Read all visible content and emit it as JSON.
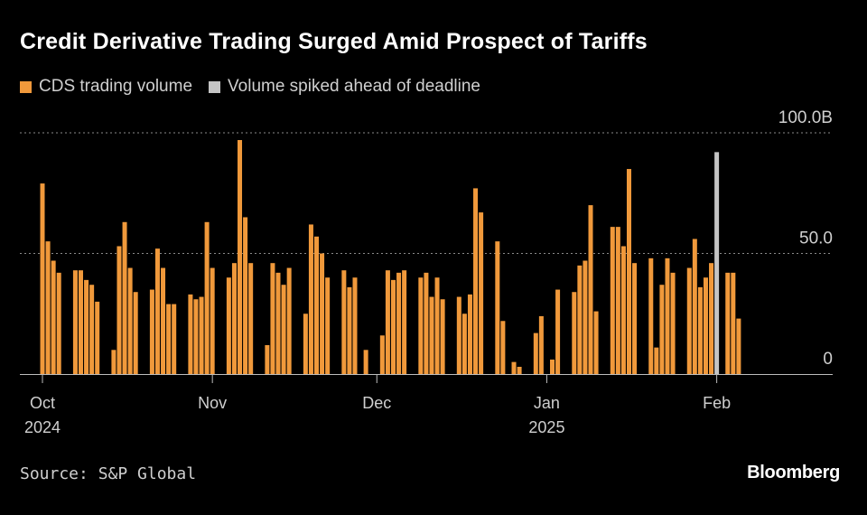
{
  "chart_data": {
    "type": "bar",
    "title": "Credit Derivative Trading Surged Amid Prospect of Tariffs",
    "legend": [
      {
        "label": "CDS trading volume",
        "color": "#f0993b"
      },
      {
        "label": "Volume spiked ahead of deadline",
        "color": "#c4c4c4"
      }
    ],
    "yunit": "B",
    "ylim": [
      0,
      100
    ],
    "yticks": [
      {
        "value": 100,
        "label": "100.0B"
      },
      {
        "value": 50,
        "label": "50.0"
      },
      {
        "value": 0,
        "label": "0"
      }
    ],
    "x_start": "2024-10-01",
    "x_end": "2025-02-28",
    "xticks": [
      {
        "date": "2024-10-01",
        "label": "Oct",
        "sublabel": "2024"
      },
      {
        "date": "2024-11-01",
        "label": "Nov",
        "sublabel": ""
      },
      {
        "date": "2024-12-01",
        "label": "Dec",
        "sublabel": ""
      },
      {
        "date": "2025-01-01",
        "label": "Jan",
        "sublabel": "2025"
      },
      {
        "date": "2025-02-01",
        "label": "Feb",
        "sublabel": ""
      }
    ],
    "series": [
      {
        "name": "CDS trading volume",
        "color": "#f0993b",
        "points": [
          [
            "2024-10-01",
            79
          ],
          [
            "2024-10-02",
            55
          ],
          [
            "2024-10-03",
            47
          ],
          [
            "2024-10-04",
            42
          ],
          [
            "2024-10-07",
            43
          ],
          [
            "2024-10-08",
            43
          ],
          [
            "2024-10-09",
            39
          ],
          [
            "2024-10-10",
            37
          ],
          [
            "2024-10-11",
            30
          ],
          [
            "2024-10-14",
            10
          ],
          [
            "2024-10-15",
            53
          ],
          [
            "2024-10-16",
            63
          ],
          [
            "2024-10-17",
            44
          ],
          [
            "2024-10-18",
            34
          ],
          [
            "2024-10-21",
            35
          ],
          [
            "2024-10-22",
            52
          ],
          [
            "2024-10-23",
            44
          ],
          [
            "2024-10-24",
            29
          ],
          [
            "2024-10-25",
            29
          ],
          [
            "2024-10-28",
            33
          ],
          [
            "2024-10-29",
            31
          ],
          [
            "2024-10-30",
            32
          ],
          [
            "2024-10-31",
            63
          ],
          [
            "2024-11-01",
            44
          ],
          [
            "2024-11-04",
            40
          ],
          [
            "2024-11-05",
            46
          ],
          [
            "2024-11-06",
            97
          ],
          [
            "2024-11-07",
            65
          ],
          [
            "2024-11-08",
            46
          ],
          [
            "2024-11-11",
            12
          ],
          [
            "2024-11-12",
            46
          ],
          [
            "2024-11-13",
            42
          ],
          [
            "2024-11-14",
            37
          ],
          [
            "2024-11-15",
            44
          ],
          [
            "2024-11-18",
            25
          ],
          [
            "2024-11-19",
            62
          ],
          [
            "2024-11-20",
            57
          ],
          [
            "2024-11-21",
            50
          ],
          [
            "2024-11-22",
            40
          ],
          [
            "2024-11-25",
            43
          ],
          [
            "2024-11-26",
            36
          ],
          [
            "2024-11-27",
            40
          ],
          [
            "2024-11-29",
            10
          ],
          [
            "2024-12-02",
            16
          ],
          [
            "2024-12-03",
            43
          ],
          [
            "2024-12-04",
            39
          ],
          [
            "2024-12-05",
            42
          ],
          [
            "2024-12-06",
            43
          ],
          [
            "2024-12-09",
            40
          ],
          [
            "2024-12-10",
            42
          ],
          [
            "2024-12-11",
            32
          ],
          [
            "2024-12-12",
            40
          ],
          [
            "2024-12-13",
            31
          ],
          [
            "2024-12-16",
            32
          ],
          [
            "2024-12-17",
            25
          ],
          [
            "2024-12-18",
            33
          ],
          [
            "2024-12-19",
            77
          ],
          [
            "2024-12-20",
            67
          ],
          [
            "2024-12-23",
            55
          ],
          [
            "2024-12-24",
            22
          ],
          [
            "2024-12-26",
            5
          ],
          [
            "2024-12-27",
            3
          ],
          [
            "2024-12-30",
            17
          ],
          [
            "2024-12-31",
            24
          ],
          [
            "2025-01-02",
            6
          ],
          [
            "2025-01-03",
            35
          ],
          [
            "2025-01-06",
            34
          ],
          [
            "2025-01-07",
            45
          ],
          [
            "2025-01-08",
            47
          ],
          [
            "2025-01-09",
            70
          ],
          [
            "2025-01-10",
            26
          ],
          [
            "2025-01-13",
            61
          ],
          [
            "2025-01-14",
            61
          ],
          [
            "2025-01-15",
            53
          ],
          [
            "2025-01-16",
            85
          ],
          [
            "2025-01-17",
            46
          ],
          [
            "2025-01-20",
            48
          ],
          [
            "2025-01-21",
            11
          ],
          [
            "2025-01-22",
            37
          ],
          [
            "2025-01-23",
            48
          ],
          [
            "2025-01-24",
            42
          ],
          [
            "2025-01-27",
            44
          ],
          [
            "2025-01-28",
            56
          ],
          [
            "2025-01-29",
            36
          ],
          [
            "2025-01-30",
            40
          ],
          [
            "2025-01-31",
            46
          ],
          [
            "2025-02-03",
            42
          ],
          [
            "2025-02-04",
            42
          ],
          [
            "2025-02-05",
            23
          ]
        ]
      },
      {
        "name": "Volume spiked ahead of deadline",
        "color": "#c4c4c4",
        "points": [
          [
            "2025-02-01",
            92
          ]
        ]
      }
    ]
  },
  "footer": {
    "source": "Source: S&P Global",
    "brand": "Bloomberg"
  }
}
